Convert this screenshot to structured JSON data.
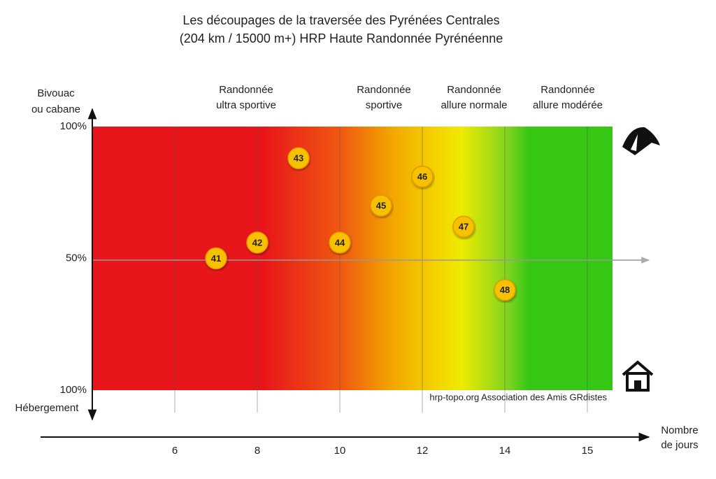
{
  "chart_data": {
    "type": "scatter",
    "title": [
      "Les découpages de la traversée des Pyrénées Centrales",
      "(204 km / 15000 m+) HRP Haute Randonnée Pyrénéenne"
    ],
    "y_label_top": [
      "Bivouac",
      "ou cabane"
    ],
    "y_label_bottom": "Hébergement",
    "x_label": [
      "Nombre",
      "de jours"
    ],
    "zones": [
      [
        "Randonnée",
        "ultra sportive"
      ],
      [
        "Randonnée",
        "sportive"
      ],
      [
        "Randonnée",
        "allure normale"
      ],
      [
        "Randonnée",
        "allure modérée"
      ]
    ],
    "credit": "hrp-topo.org Association des Amis GRdistes",
    "x": [
      7,
      8,
      9,
      10,
      11,
      12,
      13,
      14
    ],
    "values": [
      50,
      56,
      88,
      56,
      70,
      81,
      62,
      38
    ],
    "labels": [
      "41",
      "42",
      "43",
      "44",
      "45",
      "46",
      "47",
      "48"
    ],
    "color": "#f7c100",
    "xlim": [
      4,
      15.3
    ],
    "xticks": [
      6,
      8,
      10,
      12,
      14,
      15
    ],
    "ylim": [
      0,
      100
    ],
    "yticks": [
      {
        "value": 100,
        "label": "100%"
      },
      {
        "value": 50,
        "label": "50%"
      },
      {
        "value": 0,
        "label": "100%"
      }
    ],
    "grid": true
  }
}
